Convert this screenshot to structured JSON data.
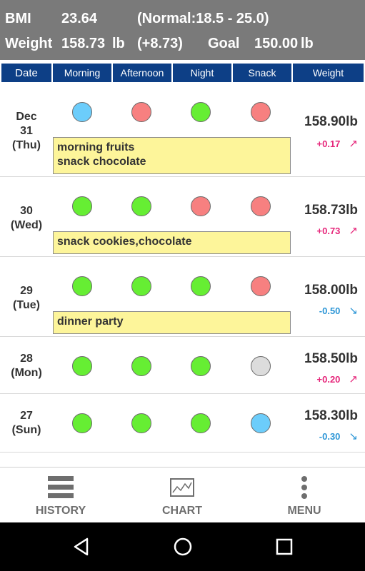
{
  "summary": {
    "bmi_label": "BMI",
    "bmi_value": "23.64",
    "bmi_range": "(Normal:18.5 - 25.0)",
    "weight_label": "Weight",
    "weight_value": "158.73",
    "weight_unit": "lb",
    "weight_change": "(+8.73)",
    "goal_label": "Goal",
    "goal_value": "150.00",
    "goal_unit": "lb"
  },
  "columns": [
    "Date",
    "Morning",
    "Afternoon",
    "Night",
    "Snack",
    "Weight"
  ],
  "status_colors": {
    "good": "#66ee33",
    "bad": "#f78080",
    "blue": "#6ccdfb",
    "none": "#dcdcdc"
  },
  "entries": [
    {
      "day": "Dec\n31\n(Thu)",
      "meals": [
        "blue",
        "bad",
        "good",
        "bad"
      ],
      "note": "morning fruits\nsnack chocolate",
      "weight": "158.90lb",
      "delta": "+0.17",
      "trend": "up"
    },
    {
      "day": "30\n(Wed)",
      "meals": [
        "good",
        "good",
        "bad",
        "bad"
      ],
      "note": "snack cookies,chocolate",
      "weight": "158.73lb",
      "delta": "+0.73",
      "trend": "up"
    },
    {
      "day": "29\n(Tue)",
      "meals": [
        "good",
        "good",
        "good",
        "bad"
      ],
      "note": "dinner party",
      "weight": "158.00lb",
      "delta": "-0.50",
      "trend": "down"
    },
    {
      "day": "28\n(Mon)",
      "meals": [
        "good",
        "good",
        "good",
        "none"
      ],
      "note": "",
      "weight": "158.50lb",
      "delta": "+0.20",
      "trend": "up"
    },
    {
      "day": "27\n(Sun)",
      "meals": [
        "good",
        "good",
        "good",
        "blue"
      ],
      "note": "",
      "weight": "158.30lb",
      "delta": "-0.30",
      "trend": "down"
    }
  ],
  "tabs": [
    {
      "label": "HISTORY",
      "icon": "list-icon"
    },
    {
      "label": "CHART",
      "icon": "chart-icon"
    },
    {
      "label": "MENU",
      "icon": "more-vertical-icon"
    }
  ],
  "nav": [
    "back-icon",
    "home-icon",
    "recents-icon"
  ]
}
